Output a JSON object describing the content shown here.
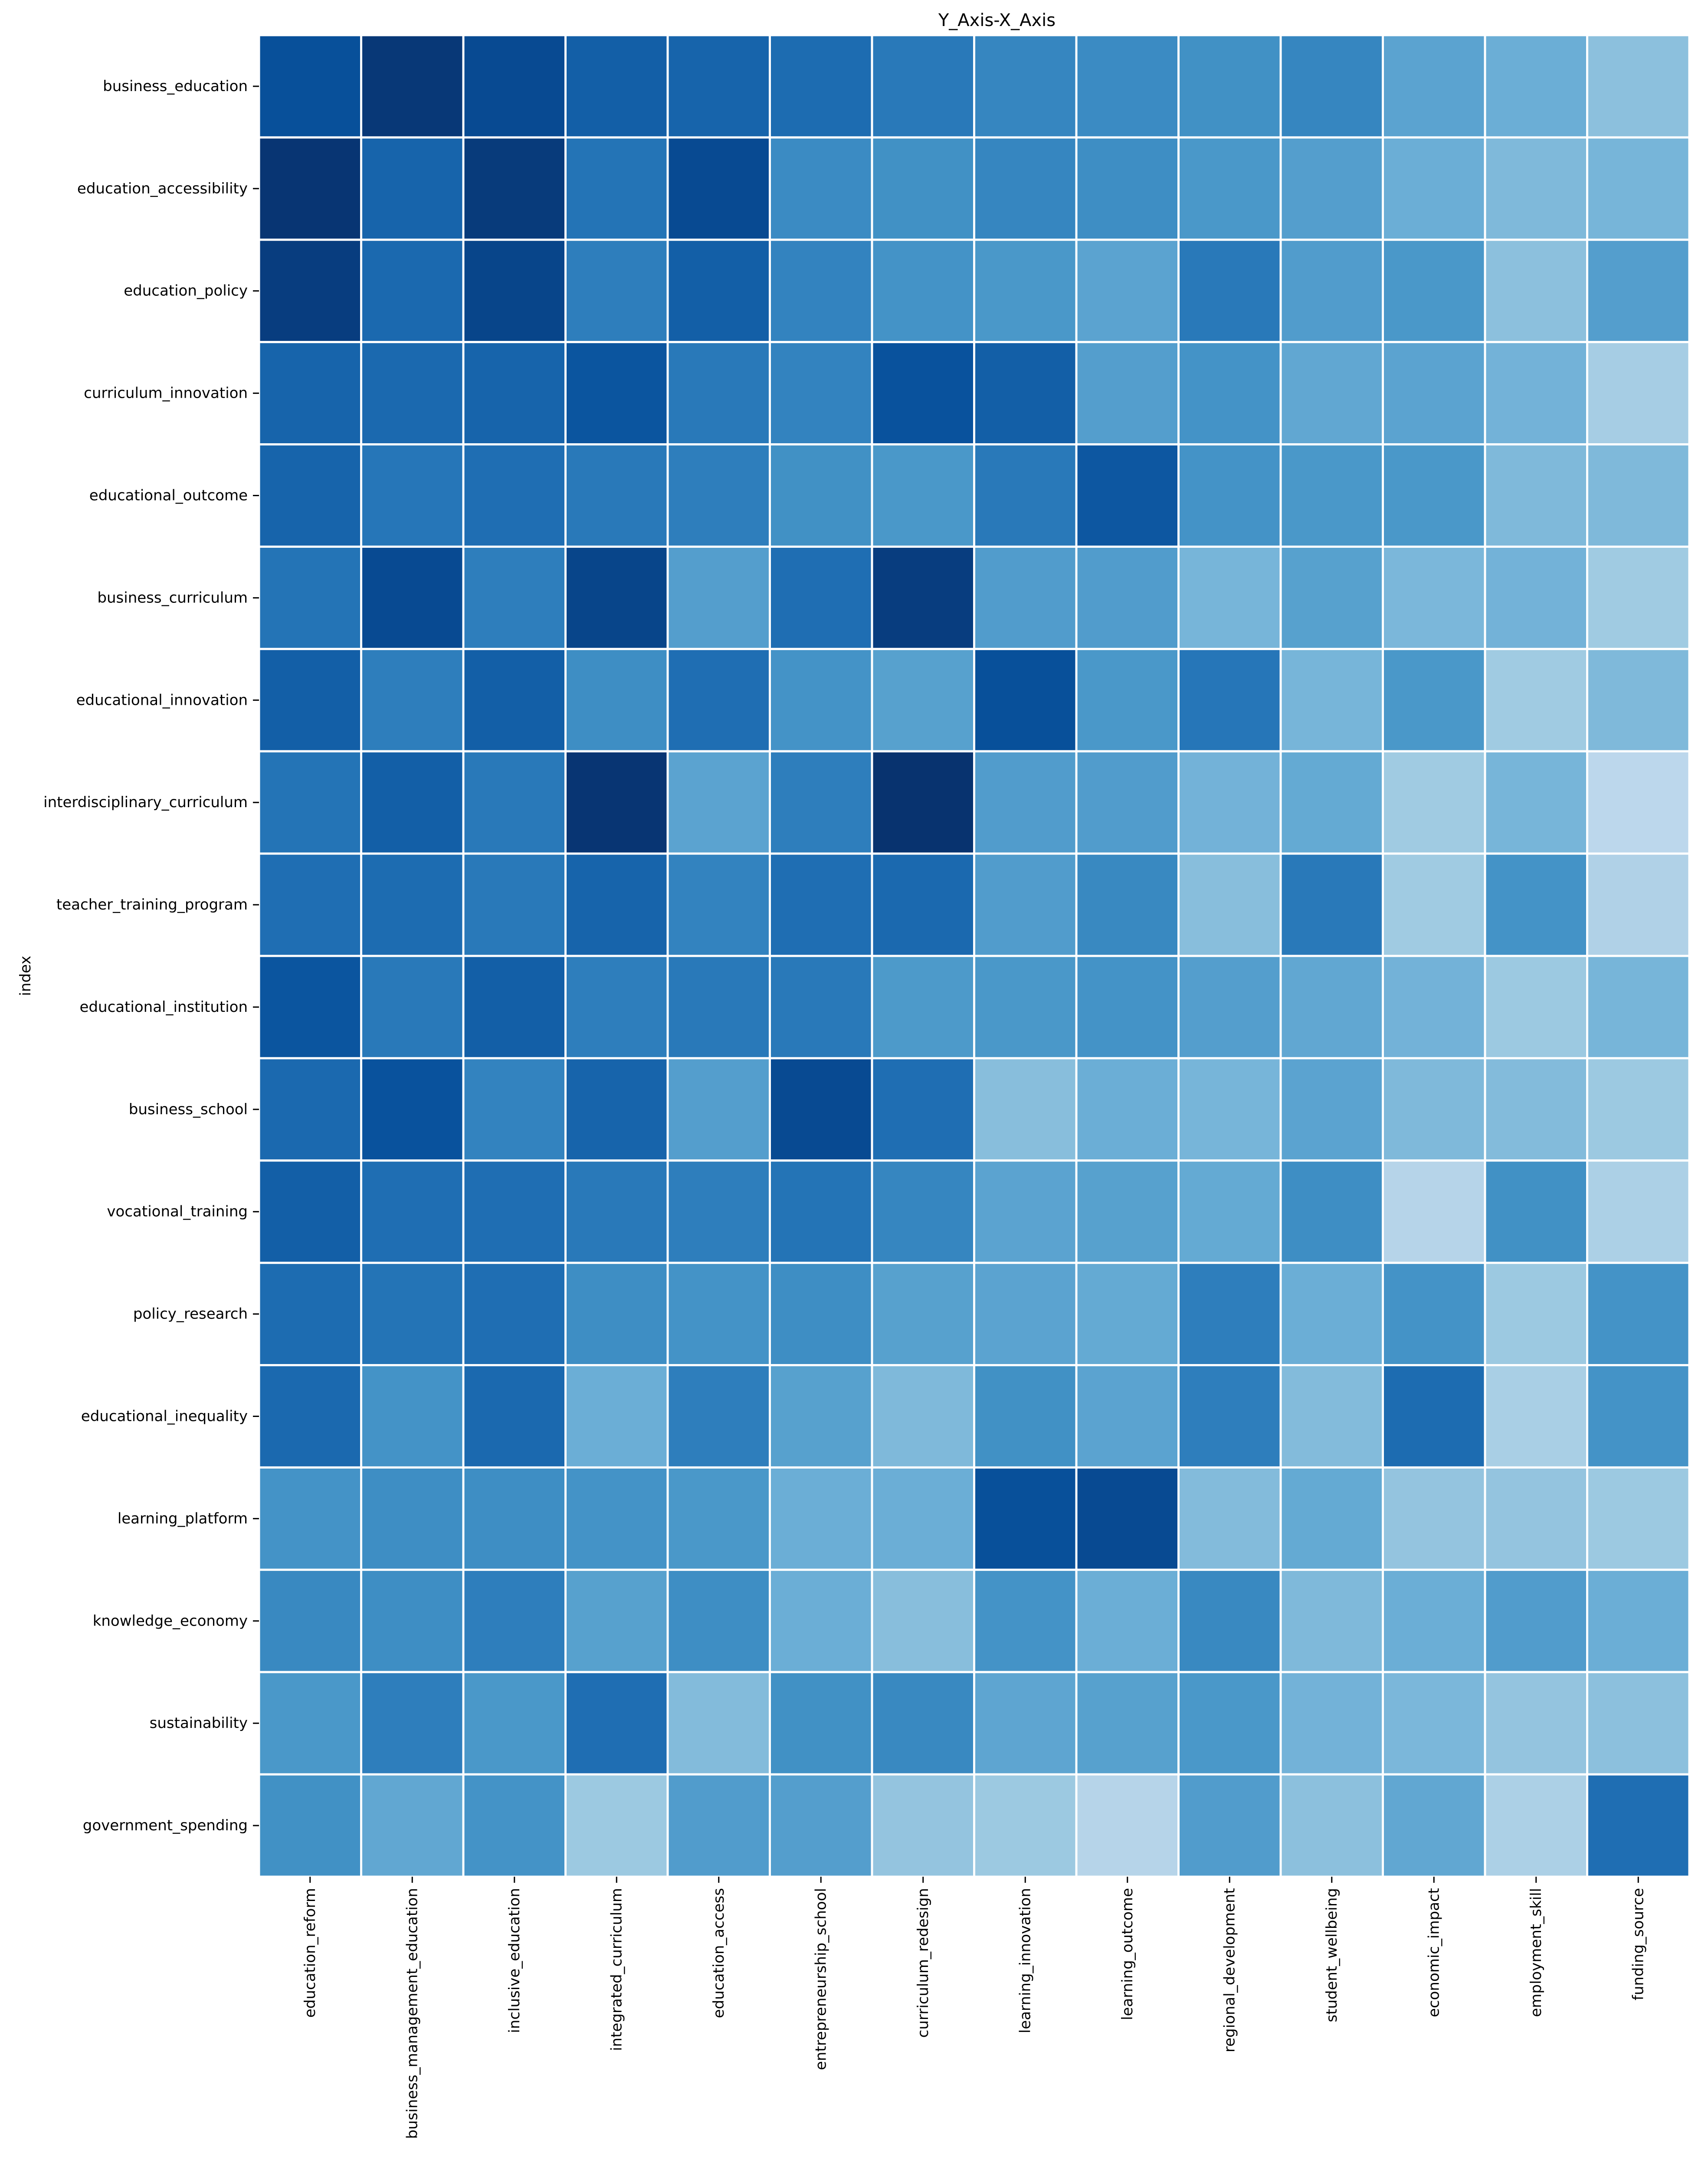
{
  "chart_data": {
    "type": "heatmap",
    "title": "Y_Axis-X_Axis",
    "xlabel": "",
    "ylabel": "index",
    "colormap": "Blues",
    "grid_line_color": "#ffffff",
    "x_categories": [
      "education_reform",
      "business_management_education",
      "inclusive_education",
      "integrated_curriculum",
      "education_access",
      "entrepreneurship_school",
      "curriculum_redesign",
      "learning_innovation",
      "learning_outcome",
      "regional_development",
      "student_wellbeing",
      "economic_impact",
      "employment_skill",
      "funding_source"
    ],
    "y_categories": [
      "business_education",
      "education_accessibility",
      "education_policy",
      "curriculum_innovation",
      "educational_outcome",
      "business_curriculum",
      "educational_innovation",
      "interdisciplinary_curriculum",
      "teacher_training_program",
      "educational_institution",
      "business_school",
      "vocational_training",
      "policy_research",
      "educational_inequality",
      "learning_platform",
      "knowledge_economy",
      "sustainability",
      "government_spending"
    ],
    "values": [
      [
        0.88,
        0.97,
        0.9,
        0.82,
        0.8,
        0.77,
        0.72,
        0.67,
        0.65,
        0.63,
        0.67,
        0.55,
        0.5,
        0.42
      ],
      [
        0.98,
        0.8,
        0.96,
        0.74,
        0.9,
        0.65,
        0.63,
        0.67,
        0.64,
        0.6,
        0.57,
        0.5,
        0.45,
        0.47
      ],
      [
        0.95,
        0.78,
        0.92,
        0.7,
        0.82,
        0.68,
        0.62,
        0.6,
        0.55,
        0.72,
        0.58,
        0.6,
        0.42,
        0.57
      ],
      [
        0.8,
        0.78,
        0.8,
        0.86,
        0.72,
        0.68,
        0.87,
        0.82,
        0.57,
        0.62,
        0.53,
        0.55,
        0.48,
        0.35
      ],
      [
        0.8,
        0.73,
        0.76,
        0.72,
        0.7,
        0.63,
        0.6,
        0.72,
        0.85,
        0.62,
        0.6,
        0.6,
        0.45,
        0.45
      ],
      [
        0.74,
        0.9,
        0.7,
        0.92,
        0.57,
        0.76,
        0.95,
        0.58,
        0.58,
        0.47,
        0.56,
        0.46,
        0.48,
        0.37
      ],
      [
        0.82,
        0.7,
        0.82,
        0.64,
        0.76,
        0.62,
        0.56,
        0.88,
        0.6,
        0.73,
        0.47,
        0.6,
        0.37,
        0.45
      ],
      [
        0.74,
        0.82,
        0.72,
        0.98,
        0.55,
        0.7,
        0.99,
        0.58,
        0.58,
        0.48,
        0.52,
        0.37,
        0.47,
        0.28
      ],
      [
        0.76,
        0.77,
        0.72,
        0.8,
        0.68,
        0.76,
        0.78,
        0.58,
        0.66,
        0.43,
        0.72,
        0.37,
        0.62,
        0.32
      ],
      [
        0.86,
        0.72,
        0.82,
        0.7,
        0.72,
        0.72,
        0.59,
        0.6,
        0.62,
        0.57,
        0.53,
        0.48,
        0.38,
        0.47
      ],
      [
        0.78,
        0.87,
        0.68,
        0.8,
        0.57,
        0.9,
        0.76,
        0.43,
        0.5,
        0.47,
        0.55,
        0.45,
        0.44,
        0.38
      ],
      [
        0.82,
        0.76,
        0.76,
        0.72,
        0.7,
        0.74,
        0.67,
        0.55,
        0.56,
        0.52,
        0.64,
        0.3,
        0.63,
        0.33
      ],
      [
        0.77,
        0.74,
        0.76,
        0.64,
        0.62,
        0.64,
        0.56,
        0.55,
        0.52,
        0.7,
        0.5,
        0.62,
        0.38,
        0.62
      ],
      [
        0.78,
        0.62,
        0.78,
        0.5,
        0.7,
        0.56,
        0.45,
        0.63,
        0.55,
        0.7,
        0.44,
        0.77,
        0.34,
        0.62
      ],
      [
        0.62,
        0.64,
        0.64,
        0.62,
        0.6,
        0.5,
        0.5,
        0.88,
        0.9,
        0.44,
        0.52,
        0.4,
        0.4,
        0.38
      ],
      [
        0.66,
        0.64,
        0.7,
        0.56,
        0.64,
        0.5,
        0.43,
        0.62,
        0.5,
        0.66,
        0.45,
        0.5,
        0.58,
        0.5
      ],
      [
        0.6,
        0.7,
        0.6,
        0.76,
        0.44,
        0.63,
        0.66,
        0.54,
        0.56,
        0.6,
        0.48,
        0.46,
        0.4,
        0.42
      ],
      [
        0.63,
        0.53,
        0.62,
        0.38,
        0.58,
        0.57,
        0.4,
        0.38,
        0.3,
        0.58,
        0.42,
        0.53,
        0.33,
        0.76
      ]
    ]
  }
}
